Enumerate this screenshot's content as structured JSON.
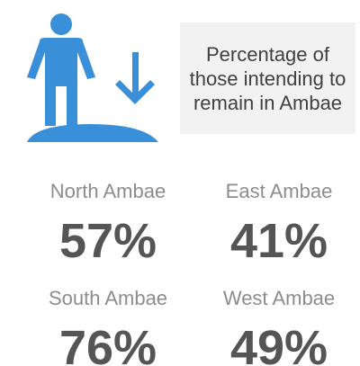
{
  "header": {
    "title": "Percentage of those intending to remain in Ambae"
  },
  "stats": [
    {
      "label": "North Ambae",
      "value": "57%"
    },
    {
      "label": "East Ambae",
      "value": "41%"
    },
    {
      "label": "South Ambae",
      "value": "76%"
    },
    {
      "label": "West Ambae",
      "value": "49%"
    }
  ]
}
